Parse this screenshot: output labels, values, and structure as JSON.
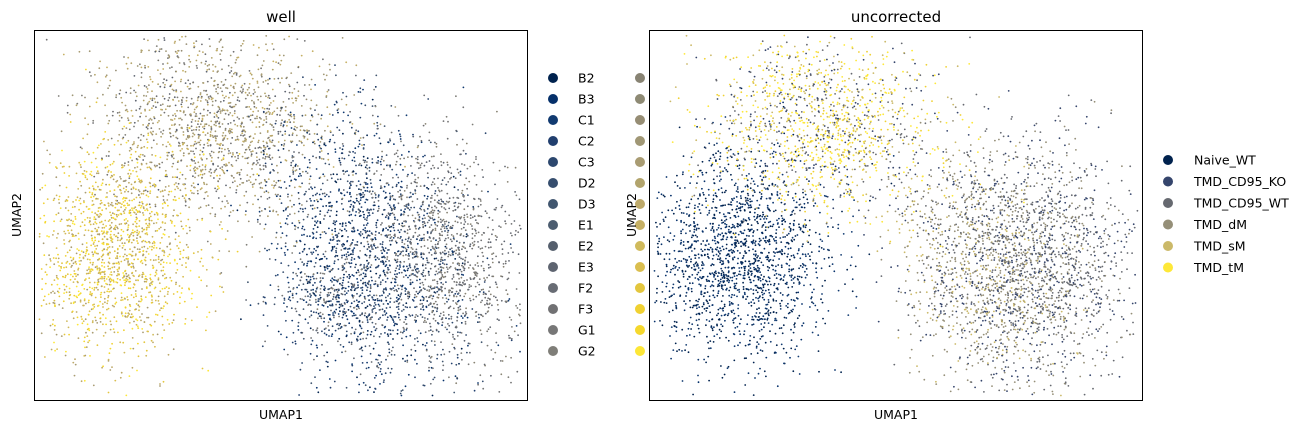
{
  "chart_data": [
    {
      "type": "scatter",
      "title": "well",
      "xlabel": "UMAP1",
      "ylabel": "UMAP2",
      "legend_placement": "right, two columns (second column labels not visible)",
      "categories": [
        "B2",
        "B3",
        "C1",
        "C2",
        "C3",
        "D2",
        "D3",
        "E1",
        "E2",
        "E3",
        "F2",
        "F3",
        "G1",
        "G2"
      ],
      "legend_col1_colors": [
        "#00224e",
        "#05306a",
        "#113a70",
        "#213f6e",
        "#2c476e",
        "#364e6e",
        "#41566f",
        "#4c5d70",
        "#555f6d",
        "#5e6470",
        "#686c74",
        "#717173",
        "#777777",
        "#7f7e78"
      ],
      "legend_col2_colors": [
        "#888373",
        "#8e8a74",
        "#968d74",
        "#a09775",
        "#a99c73",
        "#b2a46c",
        "#bda96a",
        "#c6b064",
        "#d0ba5c",
        "#dabe4f",
        "#e3c63e",
        "#f0d132",
        "#f5d82d",
        "#fde737"
      ],
      "clusters": [
        {
          "name": "upper-left cluster",
          "colors": "mixed olive/grey/gold"
        },
        {
          "name": "lower-left cluster",
          "colors": "yellow/gold"
        },
        {
          "name": "right cluster",
          "colors": "navy blue and grey"
        }
      ]
    },
    {
      "type": "scatter",
      "title": "uncorrected",
      "xlabel": "UMAP1",
      "ylabel": "UMAP2",
      "legend_placement": "right",
      "series": [
        {
          "name": "Naive_WT",
          "color": "#00224e"
        },
        {
          "name": "TMD_CD95_KO",
          "color": "#35456c"
        },
        {
          "name": "TMD_CD95_WT",
          "color": "#666970"
        },
        {
          "name": "TMD_dM",
          "color": "#958f78"
        },
        {
          "name": "TMD_sM",
          "color": "#cbb969"
        },
        {
          "name": "TMD_tM",
          "color": "#fee838"
        }
      ]
    }
  ]
}
